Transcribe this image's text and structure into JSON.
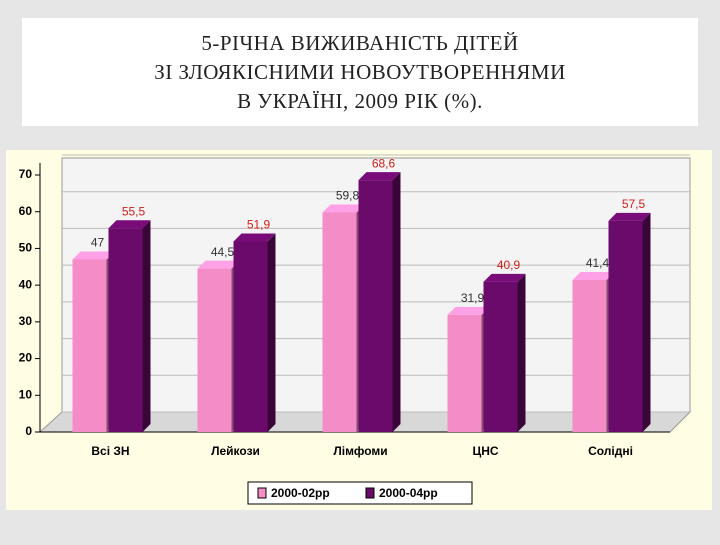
{
  "chart_data": {
    "type": "bar",
    "title": [
      "5-РІЧНА   ВИЖИВАНІСТЬ   ДІТЕЙ",
      "ЗІ  ЗЛОЯКІСНИМИ  НОВОУТВОРЕННЯМИ",
      "В УКРАЇНІ,  2009 РІК (%)."
    ],
    "categories": [
      "Всі ЗН",
      "Лейкози",
      "Лімфоми",
      "ЦНС",
      "Солідні"
    ],
    "series": [
      {
        "name": "2000-02рр",
        "color": "#f48cc8",
        "label_color": "#333333",
        "values": [
          47,
          44.5,
          59.8,
          31.9,
          41.4
        ],
        "value_labels": [
          "47",
          "44,5",
          "59,8",
          "31,9",
          "41,4"
        ]
      },
      {
        "name": "2000-04рр",
        "color": "#6a0a6a",
        "label_color": "#d0201a",
        "values": [
          55.5,
          51.9,
          68.6,
          40.9,
          57.5
        ],
        "value_labels": [
          "55,5",
          "51,9",
          "68,6",
          "40,9",
          "57,5"
        ]
      }
    ],
    "ylim": [
      0,
      70
    ],
    "yticks": [
      0,
      10,
      20,
      30,
      40,
      50,
      60,
      70
    ],
    "grid": true
  }
}
